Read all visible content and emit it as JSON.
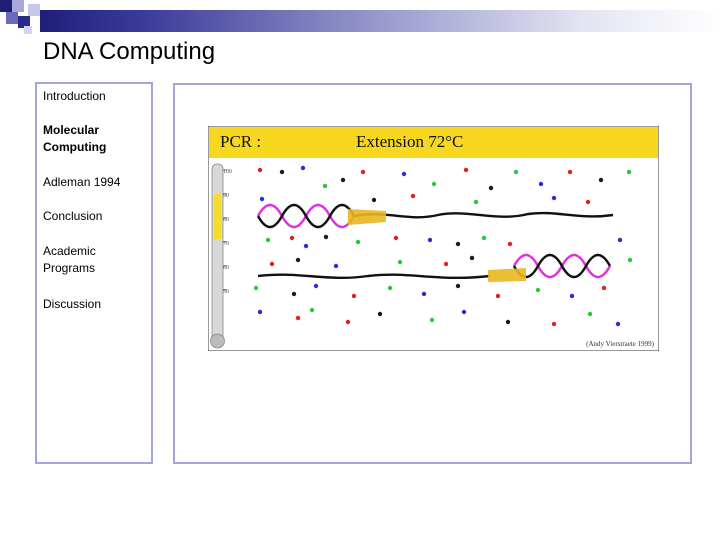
{
  "deck": {
    "title": "DNA Computing"
  },
  "nav": {
    "items": [
      {
        "label": "Introduction",
        "active": false
      },
      {
        "label": "Molecular Computing",
        "active": true
      },
      {
        "label": "Adleman 1994",
        "active": false
      },
      {
        "label": "Academic Programs",
        "active": false
      },
      {
        "label": "Discussion",
        "active": false
      }
    ],
    "conclusion_label": "Conclusion"
  },
  "figure": {
    "header_left": "PCR :",
    "header_right": "Extension 72°C",
    "thermometer_ticks": [
      "100",
      "90",
      "80",
      "70",
      "60",
      "50"
    ],
    "credit": "(Andy Vierstraete 1999)",
    "colors": {
      "banner": "#f7d81f",
      "mercury": "#f2dc2c",
      "nucleotide_green": "#22cc33",
      "nucleotide_blue": "#2c2cd6",
      "nucleotide_red": "#e02020",
      "nucleotide_dark": "#1a1a1a",
      "helix_strand": "#e030e0",
      "polymerase": "#e8b820"
    }
  }
}
